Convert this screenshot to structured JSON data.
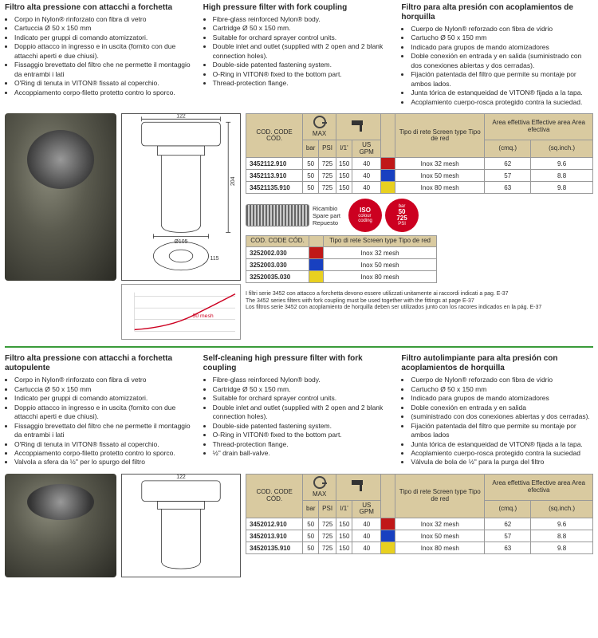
{
  "section1": {
    "it": {
      "title": "Filtro alta pressione con attacchi a forchetta",
      "items": [
        "Corpo in Nylon® rinforzato con fibra di vetro",
        "Cartuccia Ø 50 x 150 mm",
        "Indicato per gruppi di comando atomizzatori.",
        "Doppio attacco in ingresso e in uscita (fornito con due attacchi aperti e due chiusi).",
        "Fissaggio brevettato del filtro che ne permette il montaggio da entrambi i lati",
        "O'Ring di tenuta in VITON® fissato al coperchio.",
        "Accoppiamento corpo-filetto protetto contro lo sporco."
      ]
    },
    "en": {
      "title": "High pressure filter with fork coupling",
      "items": [
        "Fibre-glass reinforced Nylon® body.",
        "Cartridge Ø 50 x 150 mm.",
        "Suitable for orchard sprayer control units.",
        "Double inlet and outlet (supplied with 2 open and 2 blank connection holes).",
        "Double-side patented fastening system.",
        "O-Ring in VITON® fixed to the bottom part.",
        "Thread-protection flange."
      ]
    },
    "es": {
      "title": "Filtro para alta presión con acoplamientos de horquilla",
      "items": [
        "Cuerpo de Nylon® reforzado con fibra de vidrio",
        "Cartucho Ø 50 x 150 mm",
        "Indicado para grupos de mando atomizadores",
        "Doble conexión en entrada y en salida (suministrado con dos conexiones abiertas y dos cerradas).",
        "Fijación patentada del filtro que permite su montaje por ambos lados.",
        "Junta tórica de estanqueidad de VITON® fijada a la tapa.",
        "Acoplamiento cuerpo-rosca protegido contra la suciedad."
      ]
    },
    "table_headers": {
      "code": "COD.\nCODE\nCÓD.",
      "max": "MAX",
      "bar": "bar",
      "psi": "PSI",
      "l1": "l/1'",
      "gpm": "US GPM",
      "screen": "Tipo di rete\nScreen type\nTipo de red",
      "area": "Area effettiva\nEffective area\nArea efectiva",
      "cmq": "(cmq.)",
      "sqi": "(sq.inch.)"
    },
    "rows": [
      {
        "code": "3452112.910",
        "bar": "50",
        "psi": "725",
        "l1": "150",
        "gpm": "40",
        "color": "#c01818",
        "screen": "Inox 32 mesh",
        "cmq": "62",
        "sqi": "9.6"
      },
      {
        "code": "3452113.910",
        "bar": "50",
        "psi": "725",
        "l1": "150",
        "gpm": "40",
        "color": "#1840c0",
        "screen": "Inox 50 mesh",
        "cmq": "57",
        "sqi": "8.8"
      },
      {
        "code": "34521135.910",
        "bar": "50",
        "psi": "725",
        "l1": "150",
        "gpm": "40",
        "color": "#e8d020",
        "screen": "Inox 80 mesh",
        "cmq": "63",
        "sqi": "9.8"
      }
    ],
    "spare_label": "Ricambio\nSpare part\nRepuesto",
    "spare_rows": [
      {
        "code": "3252002.030",
        "color": "#c01818",
        "screen": "Inox 32 mesh"
      },
      {
        "code": "3252003.030",
        "color": "#1840c0",
        "screen": "Inox 50 mesh"
      },
      {
        "code": "32520035.030",
        "color": "#e8d020",
        "screen": "Inox 80 mesh"
      }
    ],
    "iso1": "ISO",
    "iso1_sub": "colour\ncoding",
    "iso2_top": "50",
    "iso2_bar": "bar",
    "iso2_bot": "725",
    "iso2_psi": "PSI",
    "footnote": "I filtri serie 3452 con attacco a forchetta devono essere utilizzati unitamente ai raccordi indicati a pag. E-37\nThe 3452 series filters with fork coupling must be used together with the fittings at page E-37\nLos filtros serie 3452 con acoplamiento de horquilla deben ser utilizados junto con los racores indicados en la pág. E-37",
    "dim_122": "122",
    "dim_105": "Ø105",
    "dim_115": "115",
    "dim_204": "204",
    "chart_label": "50 mesh"
  },
  "section2": {
    "it": {
      "title": "Filtro alta pressione con attacchi a forchetta autopulente",
      "items": [
        "Corpo in Nylon® rinforzato con fibra di vetro",
        "Cartuccia Ø 50 x 150 mm",
        "Indicato per gruppi di comando atomizzatori.",
        "Doppio attacco in ingresso e in uscita (fornito con due attacchi aperti e due chiusi).",
        "Fissaggio brevettato del filtro che ne permette il montaggio da entrambi i lati",
        "O'Ring di tenuta in VITON® fissato al coperchio.",
        "Accoppiamento corpo-filetto protetto contro lo sporco.",
        "Valvola a sfera da ½\" per lo spurgo del filtro"
      ]
    },
    "en": {
      "title": "Self-cleaning high pressure filter with fork coupling",
      "items": [
        "Fibre-glass reinforced Nylon® body.",
        "Cartridge Ø 50 x 150 mm.",
        "Suitable for orchard sprayer control units.",
        "Double inlet and outlet (supplied with 2 open and 2 blank connection holes).",
        "Double-side patented fastening system.",
        "O-Ring in VITON® fixed to the bottom part.",
        "Thread-protection flange.",
        "½\" drain ball-valve."
      ]
    },
    "es": {
      "title": "Filtro autolimpiante para alta presión con acoplamientos de horquilla",
      "items": [
        "Cuerpo de Nylon® reforzado con fibra de vidrio",
        "Cartucho Ø 50 x 150 mm",
        "Indicado para grupos de mando atomizadores",
        "Doble conexión en entrada y en salida",
        "(suministrado con dos conexiones abiertas y dos cerradas).",
        "Fijación patentada del filtro que permite su montaje por ambos lados",
        "Junta tórica de estanqueidad de VITON® fijada a la tapa.",
        "Acoplamiento cuerpo-rosca protegido contra la suciedad",
        "Válvula de bola de ½\" para la purga del filtro"
      ]
    },
    "rows": [
      {
        "code": "3452012.910",
        "bar": "50",
        "psi": "725",
        "l1": "150",
        "gpm": "40",
        "color": "#c01818",
        "screen": "Inox 32 mesh",
        "cmq": "62",
        "sqi": "9.6"
      },
      {
        "code": "3452013.910",
        "bar": "50",
        "psi": "725",
        "l1": "150",
        "gpm": "40",
        "color": "#1840c0",
        "screen": "Inox 50 mesh",
        "cmq": "57",
        "sqi": "8.8"
      },
      {
        "code": "34520135.910",
        "bar": "50",
        "psi": "725",
        "l1": "150",
        "gpm": "40",
        "color": "#e8d020",
        "screen": "Inox 80 mesh",
        "cmq": "63",
        "sqi": "9.8"
      }
    ]
  }
}
